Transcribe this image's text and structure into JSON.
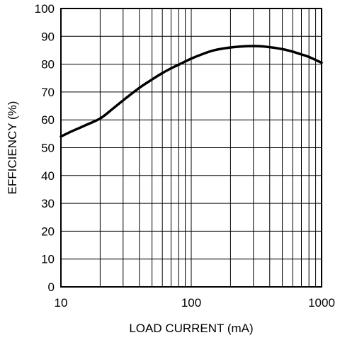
{
  "chart_data": {
    "type": "line",
    "title": "",
    "xlabel": "LOAD CURRENT (mA)",
    "ylabel": "EFFICIENCY (%)",
    "x_scale": "log",
    "xlim": [
      10,
      1000
    ],
    "ylim": [
      0,
      100
    ],
    "grid": true,
    "x_ticks": [
      10,
      100,
      1000
    ],
    "x_tick_labels": [
      "10",
      "100",
      "1000"
    ],
    "y_ticks": [
      0,
      10,
      20,
      30,
      40,
      50,
      60,
      70,
      80,
      90,
      100
    ],
    "y_tick_labels": [
      "0",
      "10",
      "20",
      "30",
      "40",
      "50",
      "60",
      "70",
      "80",
      "90",
      "100"
    ],
    "series": [
      {
        "color": "#000000",
        "x": [
          10,
          12,
          15,
          20,
          25,
          30,
          40,
          50,
          60,
          70,
          80,
          100,
          120,
          150,
          200,
          250,
          300,
          350,
          400,
          500,
          600,
          700,
          800,
          1000
        ],
        "y": [
          54.0,
          55.8,
          57.8,
          60.5,
          64.0,
          67.0,
          71.5,
          74.5,
          76.8,
          78.5,
          79.8,
          82.0,
          83.5,
          85.0,
          86.0,
          86.4,
          86.5,
          86.4,
          86.1,
          85.4,
          84.5,
          83.5,
          82.6,
          80.5
        ]
      }
    ]
  }
}
